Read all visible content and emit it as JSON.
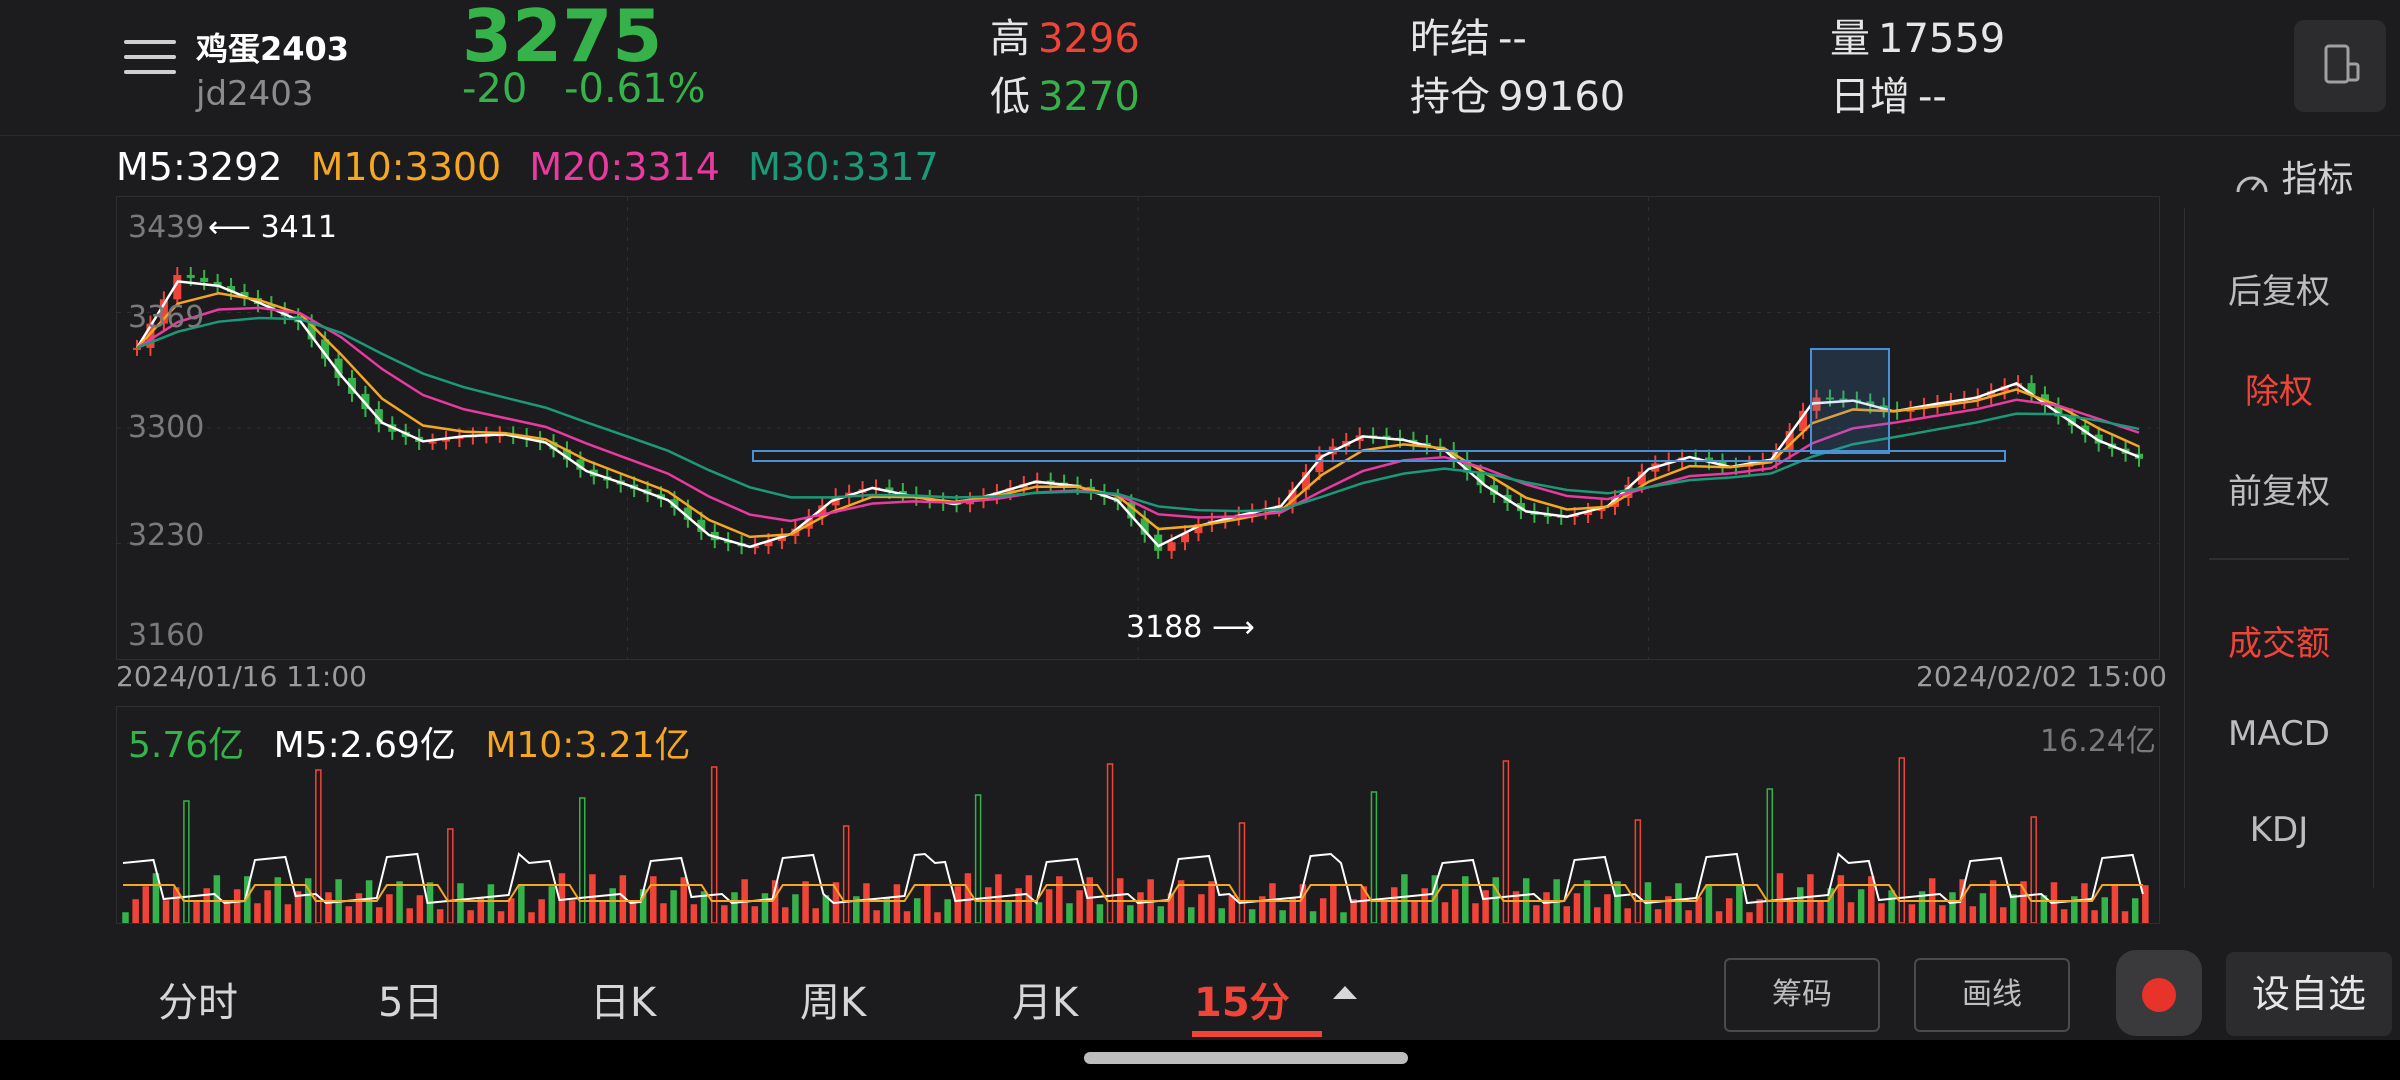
{
  "header": {
    "name": "鸡蛋2403",
    "code": "jd2403",
    "price": "3275",
    "change": "-20",
    "change_pct": "-0.61%",
    "high_label": "高",
    "high": "3296",
    "low_label": "低",
    "low": "3270",
    "prev_settle_label": "昨结",
    "prev_settle": "--",
    "open_int_label": "持仓",
    "open_int": "99160",
    "volume_label": "量",
    "volume": "17559",
    "daily_inc_label": "日增",
    "daily_inc": "--"
  },
  "ma": {
    "m5": "M5:3292",
    "m10": "M10:3300",
    "m20": "M20:3314",
    "m30": "M30:3317",
    "colors": {
      "m5": "#ffffff",
      "m10": "#f5a623",
      "m20": "#e83aa0",
      "m30": "#1a9a78"
    }
  },
  "indicator_label": "指标",
  "chart": {
    "y_ticks": [
      "3439",
      "3369",
      "3300",
      "3230",
      "3160"
    ],
    "start_date": "2024/01/16 11:00",
    "end_date": "2024/02/02 15:00",
    "max_annotation": "3411",
    "min_annotation": "3188"
  },
  "volume_panel": {
    "current": "5.76亿",
    "m5": "M5:2.69亿",
    "m10": "M10:3.21亿",
    "max": "16.24亿"
  },
  "side_menu": {
    "post_adjust": "后复权",
    "ex_rights": "除权",
    "pre_adjust": "前复权",
    "turnover": "成交额",
    "macd": "MACD",
    "kdj": "KDJ"
  },
  "tabs": [
    "分时",
    "5日",
    "日K",
    "周K",
    "月K",
    "15分"
  ],
  "buttons": {
    "chips": "筹码",
    "draw": "画线",
    "add_watch": "设自选"
  }
}
